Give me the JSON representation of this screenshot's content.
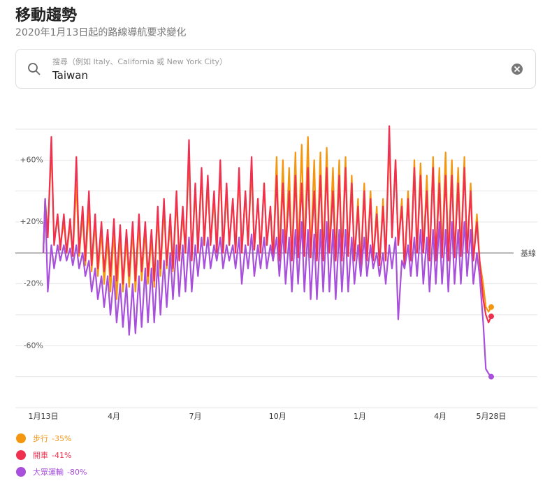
{
  "header": {
    "title": "移動趨勢",
    "subtitle": "2020年1月13日起的路線導航要求變化"
  },
  "search": {
    "placeholder": "搜尋（例如 Italy、California 或 New York City）",
    "value": "Taiwan"
  },
  "chart_data": {
    "type": "line",
    "x": [
      0,
      2,
      5,
      9,
      12,
      16,
      19,
      23,
      26,
      30,
      33,
      37,
      40,
      44,
      47,
      51,
      54,
      58,
      61,
      65,
      68,
      72,
      75,
      79,
      82,
      86,
      89,
      93,
      96,
      100,
      103,
      107,
      110,
      114,
      117,
      121,
      124,
      128,
      131,
      135,
      138,
      142,
      145,
      149,
      152,
      156,
      159,
      163,
      166,
      170,
      173,
      177,
      180,
      184,
      187,
      191,
      194,
      198,
      201,
      205,
      208,
      212,
      215,
      219,
      222,
      226,
      229,
      233,
      236,
      240,
      243,
      247,
      250,
      254,
      257,
      261,
      264,
      268,
      271,
      275,
      278,
      282,
      285,
      289,
      292,
      296,
      299,
      303,
      306,
      310,
      313,
      317,
      320,
      324,
      327,
      331,
      334,
      338,
      341,
      345,
      348,
      352,
      355,
      359,
      362,
      366,
      369,
      373,
      376,
      380,
      383,
      387,
      390,
      394,
      397,
      401,
      404,
      408,
      411,
      415,
      418,
      422,
      425,
      429,
      432,
      436,
      439,
      443,
      446,
      450,
      453,
      457,
      460,
      464,
      467,
      471,
      474,
      478,
      481,
      485,
      488,
      492,
      495,
      498,
      501
    ],
    "xlim": [
      0,
      501
    ],
    "xticks": [
      {
        "value": 0,
        "label": "1月13日"
      },
      {
        "value": 79,
        "label": "4月"
      },
      {
        "value": 170,
        "label": "7月"
      },
      {
        "value": 262,
        "label": "10月"
      },
      {
        "value": 354,
        "label": "1月"
      },
      {
        "value": 444,
        "label": "4月"
      },
      {
        "value": 501,
        "label": "5月28日"
      }
    ],
    "ylim": [
      -100,
      80
    ],
    "yticks": [
      {
        "value": 60,
        "label": "+60%"
      },
      {
        "value": 20,
        "label": "+20%"
      },
      {
        "value": -20,
        "label": "-20%"
      },
      {
        "value": -60,
        "label": "-60%"
      }
    ],
    "ygrid": [
      80,
      60,
      40,
      20,
      -20,
      -40,
      -60,
      -80,
      -100
    ],
    "baseline": {
      "value": 0,
      "label": "基線"
    },
    "series": [
      {
        "name": "步行",
        "color": "#f5960f",
        "last_label": "-35%",
        "values": [
          0,
          35,
          12,
          68,
          8,
          22,
          5,
          20,
          0,
          18,
          -2,
          45,
          -2,
          25,
          -8,
          30,
          -12,
          20,
          -15,
          15,
          -20,
          10,
          -25,
          15,
          -30,
          12,
          -25,
          10,
          -22,
          15,
          -25,
          20,
          -18,
          15,
          -20,
          10,
          -22,
          25,
          -15,
          30,
          -10,
          20,
          -12,
          35,
          -5,
          25,
          0,
          65,
          -2,
          40,
          2,
          50,
          5,
          45,
          5,
          35,
          0,
          55,
          0,
          40,
          5,
          35,
          0,
          50,
          0,
          38,
          5,
          55,
          2,
          35,
          0,
          45,
          5,
          30,
          -5,
          62,
          -5,
          60,
          0,
          55,
          -5,
          65,
          -3,
          70,
          -2,
          75,
          -3,
          60,
          -5,
          65,
          -5,
          68,
          0,
          55,
          -5,
          60,
          -5,
          62,
          -2,
          50,
          -5,
          35,
          -10,
          45,
          -5,
          40,
          -5,
          30,
          -8,
          35,
          -5,
          75,
          10,
          60,
          5,
          35,
          -10,
          40,
          -5,
          60,
          0,
          58,
          0,
          50,
          -5,
          62,
          -5,
          55,
          -3,
          65,
          -5,
          60,
          -3,
          55,
          -2,
          62,
          0,
          45,
          -5,
          25,
          -5,
          -20,
          -35,
          -38,
          -35
        ]
      },
      {
        "name": "開車",
        "color": "#f0304f",
        "last_label": "-41%",
        "values": [
          0,
          33,
          10,
          75,
          5,
          25,
          2,
          25,
          0,
          22,
          -2,
          62,
          0,
          30,
          -5,
          40,
          -8,
          25,
          -10,
          20,
          -12,
          15,
          -15,
          22,
          -18,
          18,
          -20,
          15,
          -15,
          20,
          -18,
          25,
          -12,
          20,
          -15,
          15,
          -18,
          30,
          -10,
          35,
          -8,
          25,
          -10,
          40,
          -5,
          30,
          0,
          73,
          -5,
          45,
          0,
          55,
          5,
          50,
          5,
          40,
          0,
          60,
          0,
          45,
          5,
          35,
          0,
          55,
          0,
          40,
          5,
          62,
          2,
          35,
          0,
          45,
          5,
          30,
          -5,
          50,
          -5,
          45,
          0,
          40,
          -5,
          50,
          -3,
          45,
          -2,
          55,
          -3,
          40,
          -5,
          50,
          -5,
          55,
          0,
          40,
          -5,
          50,
          -5,
          55,
          -2,
          45,
          -5,
          30,
          -10,
          40,
          -5,
          35,
          -5,
          25,
          -8,
          30,
          -5,
          82,
          10,
          60,
          5,
          30,
          -10,
          35,
          -5,
          55,
          0,
          50,
          0,
          40,
          -5,
          55,
          -5,
          45,
          -3,
          50,
          -5,
          50,
          -3,
          45,
          -2,
          55,
          0,
          40,
          -5,
          20,
          -5,
          -30,
          -40,
          -45,
          -41
        ]
      },
      {
        "name": "大眾運輸",
        "color": "#a84fdc",
        "last_label": "-80%",
        "values": [
          0,
          35,
          -25,
          5,
          -10,
          5,
          -5,
          5,
          -5,
          3,
          -8,
          5,
          -10,
          0,
          -15,
          -5,
          -25,
          -10,
          -30,
          -15,
          -35,
          -15,
          -40,
          -15,
          -45,
          -20,
          -48,
          -20,
          -53,
          -20,
          -52,
          -15,
          -48,
          -10,
          -45,
          -10,
          -45,
          -5,
          -40,
          -5,
          -35,
          0,
          -30,
          5,
          -28,
          5,
          -25,
          10,
          -25,
          5,
          -15,
          10,
          -10,
          10,
          -10,
          5,
          -5,
          10,
          -10,
          5,
          -5,
          5,
          -10,
          10,
          -20,
          5,
          -10,
          12,
          -15,
          5,
          -10,
          10,
          -10,
          5,
          -5,
          10,
          -15,
          15,
          -20,
          10,
          -25,
          15,
          -20,
          20,
          -25,
          15,
          -30,
          12,
          -30,
          15,
          -25,
          20,
          -25,
          15,
          -30,
          15,
          -25,
          15,
          -25,
          10,
          -20,
          5,
          -15,
          10,
          -15,
          5,
          -10,
          0,
          -15,
          0,
          -20,
          5,
          -10,
          10,
          -43,
          -5,
          -10,
          5,
          -15,
          10,
          -15,
          15,
          -20,
          10,
          -25,
          15,
          -20,
          20,
          -20,
          15,
          -25,
          20,
          -20,
          15,
          -20,
          20,
          -15,
          15,
          -20,
          0,
          -15,
          -45,
          -75,
          -78,
          -80
        ]
      }
    ]
  }
}
